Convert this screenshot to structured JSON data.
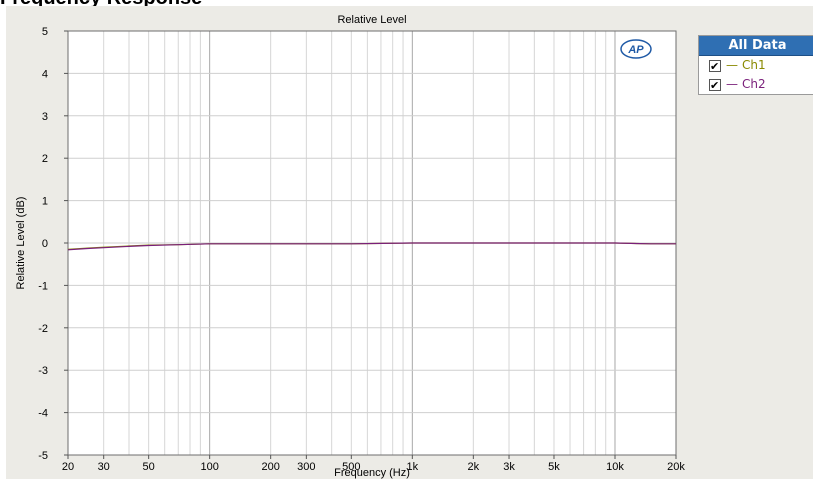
{
  "page": {
    "clipped_heading": "Frequency Response"
  },
  "legend": {
    "title": "All Data",
    "items": [
      {
        "label": "Ch1",
        "color": "#8a8a00",
        "checked": true
      },
      {
        "label": "Ch2",
        "color": "#7a1f7a",
        "checked": true
      }
    ]
  },
  "logo": {
    "text": "AP"
  },
  "chart_data": {
    "type": "line",
    "title": "Relative Level",
    "xlabel": "Frequency (Hz)",
    "ylabel": "Relative Level (dB)",
    "xscale": "log",
    "xlim": [
      20,
      20000
    ],
    "ylim": [
      -5,
      5
    ],
    "grid": true,
    "legend_position": "right",
    "x_ticks": [
      {
        "v": 20,
        "label": "20"
      },
      {
        "v": 30,
        "label": "30"
      },
      {
        "v": 50,
        "label": "50"
      },
      {
        "v": 100,
        "label": "100"
      },
      {
        "v": 200,
        "label": "200"
      },
      {
        "v": 300,
        "label": "300"
      },
      {
        "v": 500,
        "label": "500"
      },
      {
        "v": 1000,
        "label": "1k"
      },
      {
        "v": 2000,
        "label": "2k"
      },
      {
        "v": 3000,
        "label": "3k"
      },
      {
        "v": 5000,
        "label": "5k"
      },
      {
        "v": 10000,
        "label": "10k"
      },
      {
        "v": 20000,
        "label": "20k"
      }
    ],
    "y_ticks": [
      5,
      4,
      3,
      2,
      1,
      0,
      -1,
      -2,
      -3,
      -4,
      -5
    ],
    "series": [
      {
        "name": "Ch1",
        "color": "#8a8a00",
        "x": [
          20,
          25,
          30,
          40,
          50,
          70,
          100,
          200,
          500,
          1000,
          2000,
          5000,
          10000,
          12000,
          15000,
          20000
        ],
        "y": [
          -0.15,
          -0.12,
          -0.1,
          -0.07,
          -0.05,
          -0.04,
          -0.02,
          -0.02,
          -0.02,
          0,
          0,
          0,
          0,
          -0.01,
          -0.02,
          -0.02
        ]
      },
      {
        "name": "Ch2",
        "color": "#7a1f7a",
        "x": [
          20,
          25,
          30,
          40,
          50,
          70,
          100,
          200,
          500,
          1000,
          2000,
          5000,
          10000,
          12000,
          15000,
          20000
        ],
        "y": [
          -0.16,
          -0.13,
          -0.11,
          -0.08,
          -0.06,
          -0.04,
          -0.02,
          -0.02,
          -0.02,
          0,
          0,
          0,
          0,
          -0.01,
          -0.02,
          -0.02
        ]
      }
    ]
  }
}
